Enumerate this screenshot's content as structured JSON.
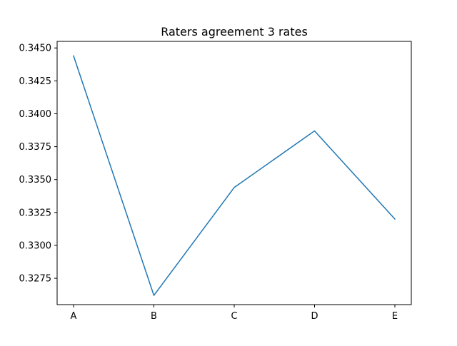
{
  "chart_data": {
    "type": "line",
    "title": "Raters agreement 3 rates",
    "xlabel": "",
    "ylabel": "",
    "categories": [
      "A",
      "B",
      "C",
      "D",
      "E"
    ],
    "series": [
      {
        "values": [
          0.3444,
          0.3262,
          0.3344,
          0.3387,
          0.332
        ]
      }
    ],
    "ylim": [
      0.3255,
      0.3455
    ],
    "yticks": [
      "0.3275",
      "0.3300",
      "0.3325",
      "0.3350",
      "0.3375",
      "0.3400",
      "0.3425",
      "0.3450"
    ],
    "grid": false,
    "line_color": "#1f77b4"
  }
}
